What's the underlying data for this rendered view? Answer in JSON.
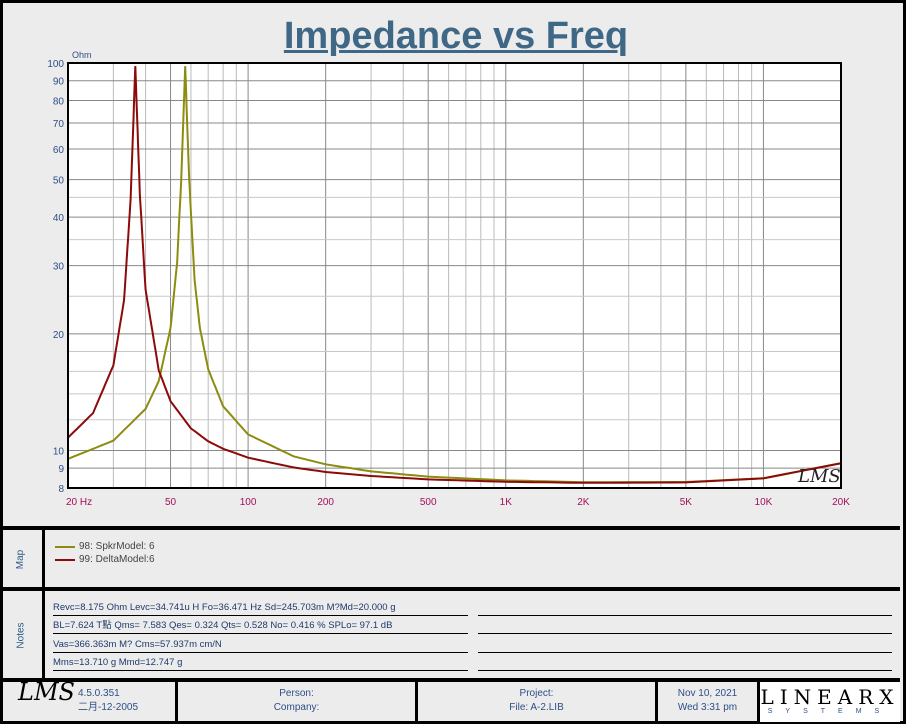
{
  "title": "Impedance vs Freq",
  "chart_data": {
    "type": "line",
    "title": "Impedance vs Freq",
    "ylabel": "Ohm",
    "xlabel": "Hz",
    "xscale": "log",
    "yscale": "log",
    "xlim": [
      20,
      20000
    ],
    "ylim": [
      8,
      100
    ],
    "grid": true,
    "xticks": [
      {
        "v": 20,
        "l": "20  Hz"
      },
      {
        "v": 50,
        "l": "50"
      },
      {
        "v": 100,
        "l": "100"
      },
      {
        "v": 200,
        "l": "200"
      },
      {
        "v": 500,
        "l": "500"
      },
      {
        "v": 1000,
        "l": "1K"
      },
      {
        "v": 2000,
        "l": "2K"
      },
      {
        "v": 5000,
        "l": "5K"
      },
      {
        "v": 10000,
        "l": "10K"
      },
      {
        "v": 20000,
        "l": "20K"
      }
    ],
    "yticks": [
      {
        "v": 8,
        "l": "8"
      },
      {
        "v": 9,
        "l": "9"
      },
      {
        "v": 10,
        "l": "10"
      },
      {
        "v": 20,
        "l": "20"
      },
      {
        "v": 30,
        "l": "30"
      },
      {
        "v": 40,
        "l": "40"
      },
      {
        "v": 50,
        "l": "50"
      },
      {
        "v": 60,
        "l": "60"
      },
      {
        "v": 70,
        "l": "70"
      },
      {
        "v": 80,
        "l": "80"
      },
      {
        "v": 90,
        "l": "90"
      },
      {
        "v": 100,
        "l": "100"
      }
    ],
    "series": [
      {
        "name": "98: SpkrModel: 6",
        "color": "#8c8c10",
        "x": [
          20,
          30,
          40,
          45,
          50,
          53,
          55,
          57,
          59,
          62,
          65,
          70,
          80,
          100,
          150,
          200,
          300,
          500,
          1000,
          2000,
          5000,
          10000,
          20000
        ],
        "y": [
          9.51,
          10.6,
          12.8,
          15.1,
          20.7,
          30.4,
          49.8,
          98.2,
          50.8,
          27.5,
          20.7,
          16.2,
          13.0,
          11.0,
          9.66,
          9.21,
          8.83,
          8.56,
          8.37,
          8.28,
          8.29,
          8.48,
          9.27
        ]
      },
      {
        "name": "99: DeltaModel:6",
        "color": "#8c0a0a",
        "x": [
          20,
          25,
          30,
          33,
          35,
          36.5,
          38,
          40,
          45,
          50,
          60,
          70,
          80,
          100,
          150,
          200,
          300,
          500,
          1000,
          2000,
          5000,
          10000,
          20000
        ],
        "y": [
          10.79,
          12.48,
          16.58,
          24.4,
          44.5,
          98.2,
          46.0,
          26.0,
          16.1,
          13.4,
          11.4,
          10.56,
          10.1,
          9.58,
          9.04,
          8.8,
          8.59,
          8.42,
          8.3,
          8.25,
          8.27,
          8.47,
          9.27
        ]
      }
    ]
  },
  "map": {
    "label": "Map"
  },
  "notes": {
    "label": "Notes",
    "lines": [
      "Revc=8.175 Ohm  Levc=34.741u H  Fo=36.471 Hz  Sd=245.703m M?Md=20.000 g",
      "BL=7.624 T點  Qms= 7.583  Qes= 0.324  Qts= 0.528  No= 0.416 %  SPLo= 97.1 dB",
      "Vas=366.363m M? Cms=57.937m cm/N",
      "Mms=13.710 g  Mmd=12.747 g"
    ]
  },
  "footer": {
    "logo": "LMS",
    "version": "4.5.0.351",
    "build_date": "二月-12-2005",
    "person": "Person:",
    "company": "Company:",
    "project": "Project:",
    "file": "File: A-2.LIB",
    "date": "Nov 10, 2021",
    "time": "Wed  3:31 pm",
    "brand": "LINEARX",
    "brand_sub": "SYSTEMS"
  },
  "watermark": "LMS"
}
